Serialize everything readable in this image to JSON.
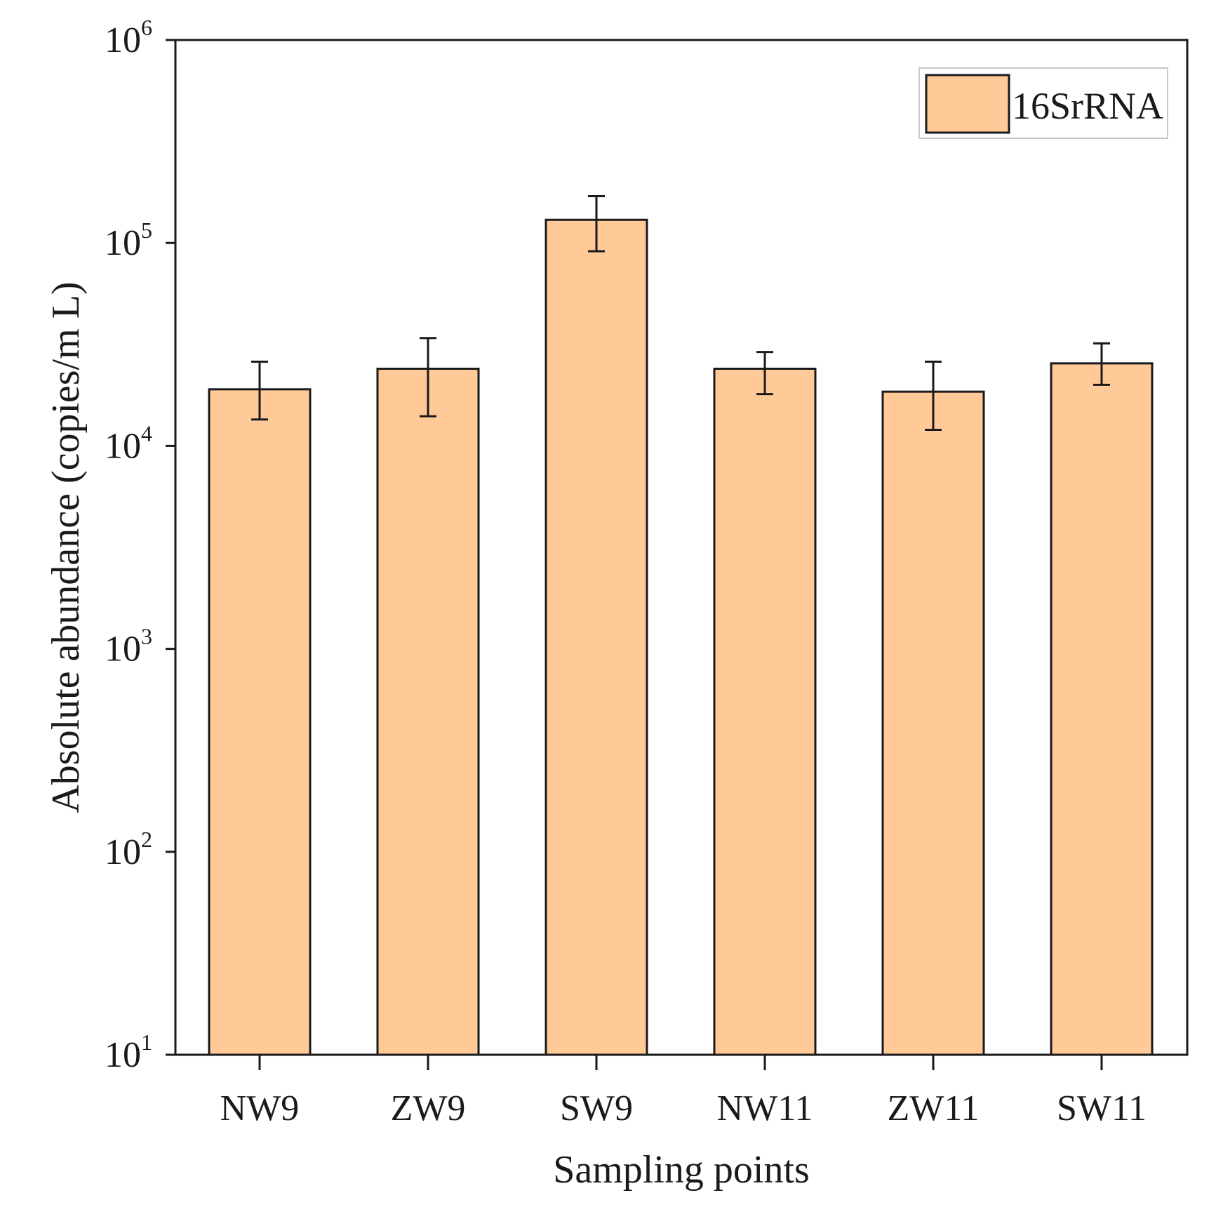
{
  "chart_data": {
    "type": "bar",
    "scale": "log",
    "title": "",
    "xlabel": "Sampling points",
    "ylabel": "Absolute abundance (copies/m L)",
    "categories": [
      "NW9",
      "ZW9",
      "SW9",
      "NW11",
      "ZW11",
      "SW11"
    ],
    "series": [
      {
        "name": "16SrRNA",
        "values": [
          19000,
          24000,
          130000,
          24000,
          18500,
          25500
        ],
        "errors_low": [
          13500,
          14000,
          91000,
          18000,
          12000,
          20000
        ],
        "errors_high": [
          26000,
          34000,
          170000,
          29000,
          26000,
          32000
        ],
        "color": "#ffc998"
      }
    ],
    "ylim": [
      10,
      1000000
    ],
    "y_ticks": [
      {
        "value": 10,
        "base": "10",
        "exp": "1"
      },
      {
        "value": 100,
        "base": "10",
        "exp": "2"
      },
      {
        "value": 1000,
        "base": "10",
        "exp": "3"
      },
      {
        "value": 10000,
        "base": "10",
        "exp": "4"
      },
      {
        "value": 100000,
        "base": "10",
        "exp": "5"
      },
      {
        "value": 1000000,
        "base": "10",
        "exp": "6"
      }
    ],
    "legend": {
      "position": "top-right",
      "label": "16SrRNA"
    },
    "grid": false
  }
}
